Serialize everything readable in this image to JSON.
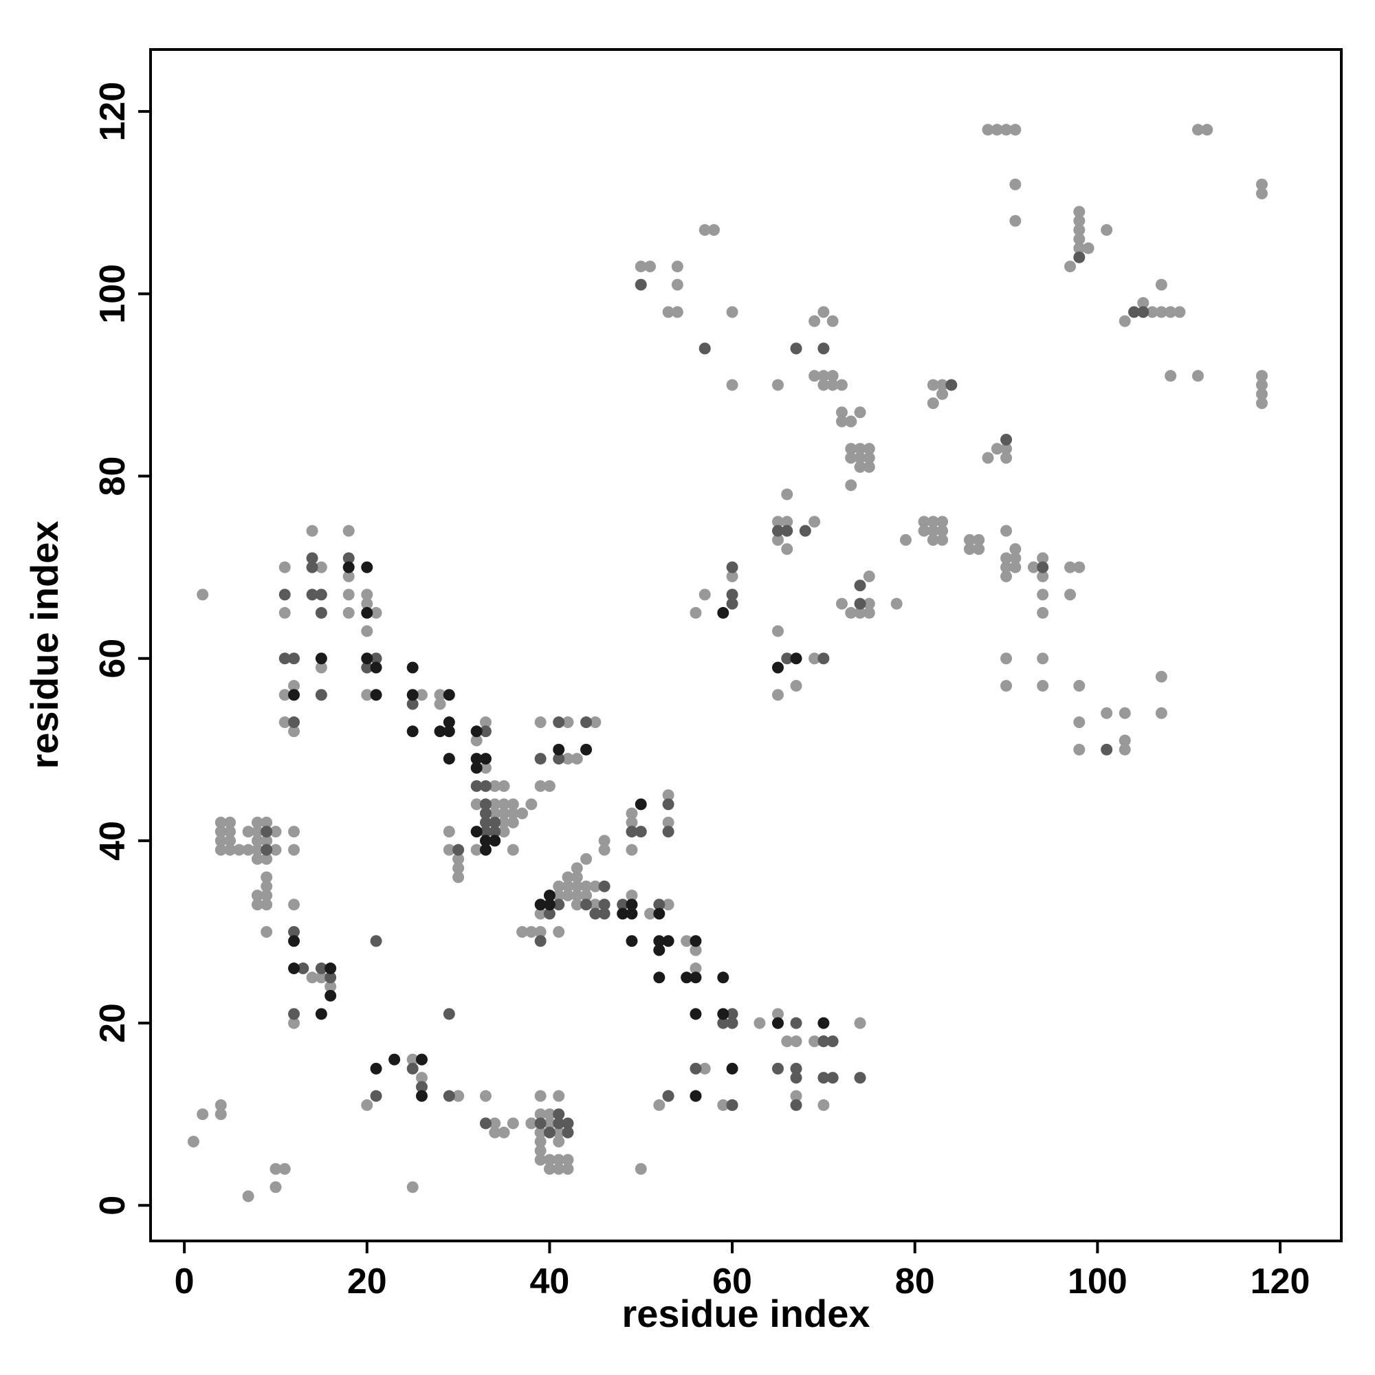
{
  "chart_data": {
    "type": "scatter",
    "xlabel": "residue index",
    "ylabel": "residue index",
    "xlim": [
      -3.7,
      126.7
    ],
    "ylim": [
      -3.9,
      126.8
    ],
    "xticks": [
      0,
      20,
      40,
      60,
      80,
      100,
      120
    ],
    "yticks": [
      0,
      20,
      40,
      60,
      80,
      100,
      120
    ],
    "series": [
      {
        "color": "#999999",
        "x": [
          1,
          2,
          4,
          4,
          7,
          10,
          10,
          11,
          2,
          4,
          5,
          4,
          5,
          4,
          5,
          4,
          5,
          6,
          7,
          7,
          8,
          8,
          8,
          8,
          8,
          9,
          9,
          9,
          10,
          10,
          12,
          12,
          8,
          8,
          9,
          9,
          9,
          9,
          9,
          12,
          12,
          14,
          15,
          16,
          11,
          11,
          11,
          11,
          12,
          12,
          14,
          15,
          15,
          18,
          18,
          18,
          18,
          20,
          20,
          20,
          20,
          21,
          26,
          28,
          28,
          32,
          33,
          33,
          34,
          35,
          32,
          34,
          35,
          36,
          34,
          35,
          36,
          37,
          35,
          36,
          35,
          32,
          29,
          29,
          30,
          30,
          30,
          38,
          39,
          40,
          39,
          42,
          42,
          43,
          45,
          39,
          41,
          41,
          42,
          42,
          42,
          43,
          43,
          43,
          43,
          43,
          44,
          44,
          44,
          45,
          45,
          46,
          46,
          49,
          49,
          49,
          49,
          51,
          53,
          53,
          53,
          36,
          37,
          38,
          39,
          41,
          55,
          56,
          56,
          56,
          63,
          65,
          65,
          67,
          66,
          74,
          69,
          70,
          65,
          70,
          59,
          57,
          56,
          60,
          52,
          53,
          67,
          20,
          25,
          26,
          25,
          30,
          30,
          33,
          33,
          34,
          34,
          35,
          36,
          38,
          38,
          39,
          39,
          39,
          39,
          39,
          39,
          39,
          40,
          40,
          40,
          40,
          41,
          41,
          41,
          41,
          41,
          42,
          42,
          50,
          51,
          50,
          53,
          54,
          54,
          54,
          58,
          57,
          60,
          57,
          60,
          65,
          67,
          69,
          70,
          70,
          71,
          69,
          70,
          70,
          71,
          71,
          72,
          74,
          72,
          73,
          72,
          73,
          73,
          74,
          75,
          73,
          74,
          75,
          74,
          75,
          73,
          56,
          57,
          60,
          65,
          66,
          65,
          66,
          66,
          69,
          69,
          65,
          67,
          72,
          73,
          74,
          75,
          75,
          75,
          78,
          79,
          81,
          82,
          83,
          81,
          82,
          83,
          82,
          83,
          82,
          82,
          83,
          83,
          86,
          87,
          86,
          87,
          88,
          89,
          90,
          90,
          90,
          90,
          90,
          90,
          91,
          91,
          91,
          93,
          94,
          94,
          94,
          94,
          97,
          98,
          97,
          90,
          94,
          90,
          94,
          98,
          98,
          98,
          101,
          103,
          103,
          103,
          107,
          107,
          88,
          89,
          90,
          91,
          91,
          91,
          98,
          98,
          98,
          98,
          98,
          99,
          97,
          101,
          103,
          105,
          106,
          107,
          107,
          108,
          109,
          108,
          111,
          111,
          112,
          118,
          118,
          118,
          118,
          118,
          118
        ],
        "values": [
          7,
          10,
          11,
          10,
          1,
          2,
          4,
          4,
          67,
          42,
          42,
          41,
          41,
          40,
          40,
          39,
          39,
          39,
          39,
          41,
          42,
          41,
          40,
          39,
          38,
          42,
          40,
          38,
          41,
          39,
          41,
          39,
          34,
          33,
          34,
          36,
          35,
          33,
          30,
          33,
          20,
          25,
          25,
          24,
          70,
          65,
          56,
          53,
          57,
          52,
          74,
          70,
          59,
          74,
          69,
          67,
          65,
          67,
          66,
          63,
          56,
          65,
          56,
          56,
          55,
          51,
          53,
          48,
          46,
          46,
          44,
          44,
          44,
          44,
          43,
          43,
          43,
          43,
          42,
          42,
          41,
          39,
          41,
          39,
          38,
          37,
          36,
          44,
          46,
          46,
          53,
          53,
          49,
          49,
          53,
          32,
          34,
          35,
          36,
          35,
          34,
          37,
          36,
          35,
          34,
          33,
          38,
          35,
          34,
          35,
          33,
          40,
          39,
          34,
          43,
          42,
          39,
          32,
          33,
          45,
          42,
          39,
          30,
          30,
          30,
          30,
          29,
          28,
          28,
          26,
          20,
          63,
          21,
          18,
          18,
          20,
          18,
          18,
          15,
          11,
          11,
          15,
          12,
          11,
          11,
          12,
          12,
          11,
          2,
          14,
          16,
          12,
          12,
          9,
          12,
          8,
          9,
          8,
          9,
          9,
          9,
          8,
          12,
          10,
          8,
          7,
          6,
          5,
          4,
          10,
          9,
          5,
          4,
          12,
          8,
          7,
          5,
          4,
          5,
          4,
          103,
          103,
          98,
          98,
          103,
          101,
          107,
          107,
          98,
          94,
          90,
          90,
          94,
          97,
          94,
          98,
          97,
          91,
          90,
          91,
          90,
          91,
          90,
          87,
          86,
          86,
          87,
          86,
          83,
          83,
          83,
          82,
          82,
          82,
          81,
          81,
          79,
          65,
          67,
          69,
          75,
          75,
          73,
          72,
          78,
          75,
          60,
          56,
          57,
          66,
          65,
          65,
          65,
          69,
          66,
          66,
          73,
          75,
          75,
          75,
          74,
          74,
          74,
          73,
          73,
          88,
          90,
          90,
          89,
          73,
          73,
          72,
          72,
          82,
          83,
          83,
          82,
          74,
          71,
          70,
          69,
          72,
          71,
          70,
          70,
          71,
          69,
          67,
          65,
          70,
          70,
          67,
          60,
          60,
          57,
          57,
          57,
          53,
          50,
          54,
          54,
          51,
          50,
          58,
          54,
          118,
          118,
          118,
          118,
          112,
          108,
          109,
          108,
          107,
          106,
          105,
          105,
          103,
          107,
          97,
          99,
          98,
          101,
          98,
          98,
          98,
          91,
          91,
          118,
          118,
          112,
          111,
          91,
          90,
          89,
          88
        ]
      },
      {
        "color": "#5a5a5a",
        "x": [
          9,
          9,
          12,
          13,
          12,
          15,
          16,
          21,
          11,
          11,
          12,
          12,
          14,
          14,
          14,
          15,
          15,
          15,
          18,
          20,
          21,
          25,
          33,
          32,
          33,
          33,
          33,
          33,
          34,
          33,
          34,
          30,
          39,
          41,
          41,
          44,
          40,
          41,
          44,
          45,
          46,
          46,
          46,
          48,
          49,
          50,
          52,
          53,
          53,
          39,
          59,
          60,
          60,
          67,
          70,
          71,
          65,
          67,
          67,
          70,
          71,
          74,
          67,
          56,
          53,
          60,
          21,
          25,
          26,
          29,
          29,
          33,
          39,
          40,
          41,
          41,
          42,
          42,
          50,
          57,
          67,
          70,
          60,
          60,
          60,
          65,
          66,
          68,
          66,
          70,
          74,
          74,
          84,
          90,
          94,
          101,
          98,
          104,
          105
        ],
        "values": [
          41,
          39,
          30,
          26,
          21,
          26,
          25,
          29,
          67,
          60,
          60,
          53,
          71,
          70,
          67,
          67,
          65,
          56,
          71,
          59,
          60,
          55,
          52,
          46,
          46,
          44,
          43,
          42,
          42,
          41,
          41,
          39,
          49,
          53,
          49,
          53,
          32,
          33,
          33,
          32,
          35,
          33,
          32,
          33,
          41,
          41,
          33,
          44,
          41,
          29,
          20,
          21,
          20,
          20,
          18,
          18,
          15,
          15,
          14,
          14,
          14,
          14,
          11,
          15,
          12,
          11,
          12,
          15,
          13,
          21,
          12,
          9,
          9,
          8,
          10,
          9,
          9,
          8,
          101,
          94,
          94,
          94,
          70,
          67,
          66,
          74,
          74,
          74,
          60,
          60,
          66,
          68,
          90,
          84,
          70,
          50,
          104,
          98,
          98
        ]
      },
      {
        "color": "#1a1a1a",
        "x": [
          12,
          12,
          15,
          16,
          16,
          12,
          15,
          18,
          20,
          20,
          20,
          21,
          21,
          25,
          25,
          25,
          28,
          29,
          29,
          29,
          29,
          32,
          32,
          32,
          33,
          32,
          33,
          34,
          33,
          41,
          44,
          39,
          40,
          40,
          48,
          49,
          49,
          50,
          52,
          49,
          52,
          52,
          53,
          52,
          56,
          55,
          56,
          59,
          56,
          59,
          65,
          70,
          60,
          56,
          21,
          23,
          26,
          26,
          59,
          65,
          67
        ],
        "values": [
          29,
          26,
          21,
          26,
          23,
          56,
          60,
          70,
          70,
          65,
          60,
          59,
          56,
          59,
          56,
          52,
          52,
          56,
          53,
          52,
          49,
          52,
          49,
          48,
          49,
          41,
          40,
          40,
          39,
          50,
          50,
          33,
          34,
          33,
          32,
          33,
          32,
          44,
          32,
          29,
          29,
          28,
          29,
          25,
          29,
          25,
          25,
          25,
          21,
          21,
          20,
          20,
          15,
          12,
          15,
          16,
          16,
          12,
          65,
          59,
          60
        ]
      }
    ]
  }
}
